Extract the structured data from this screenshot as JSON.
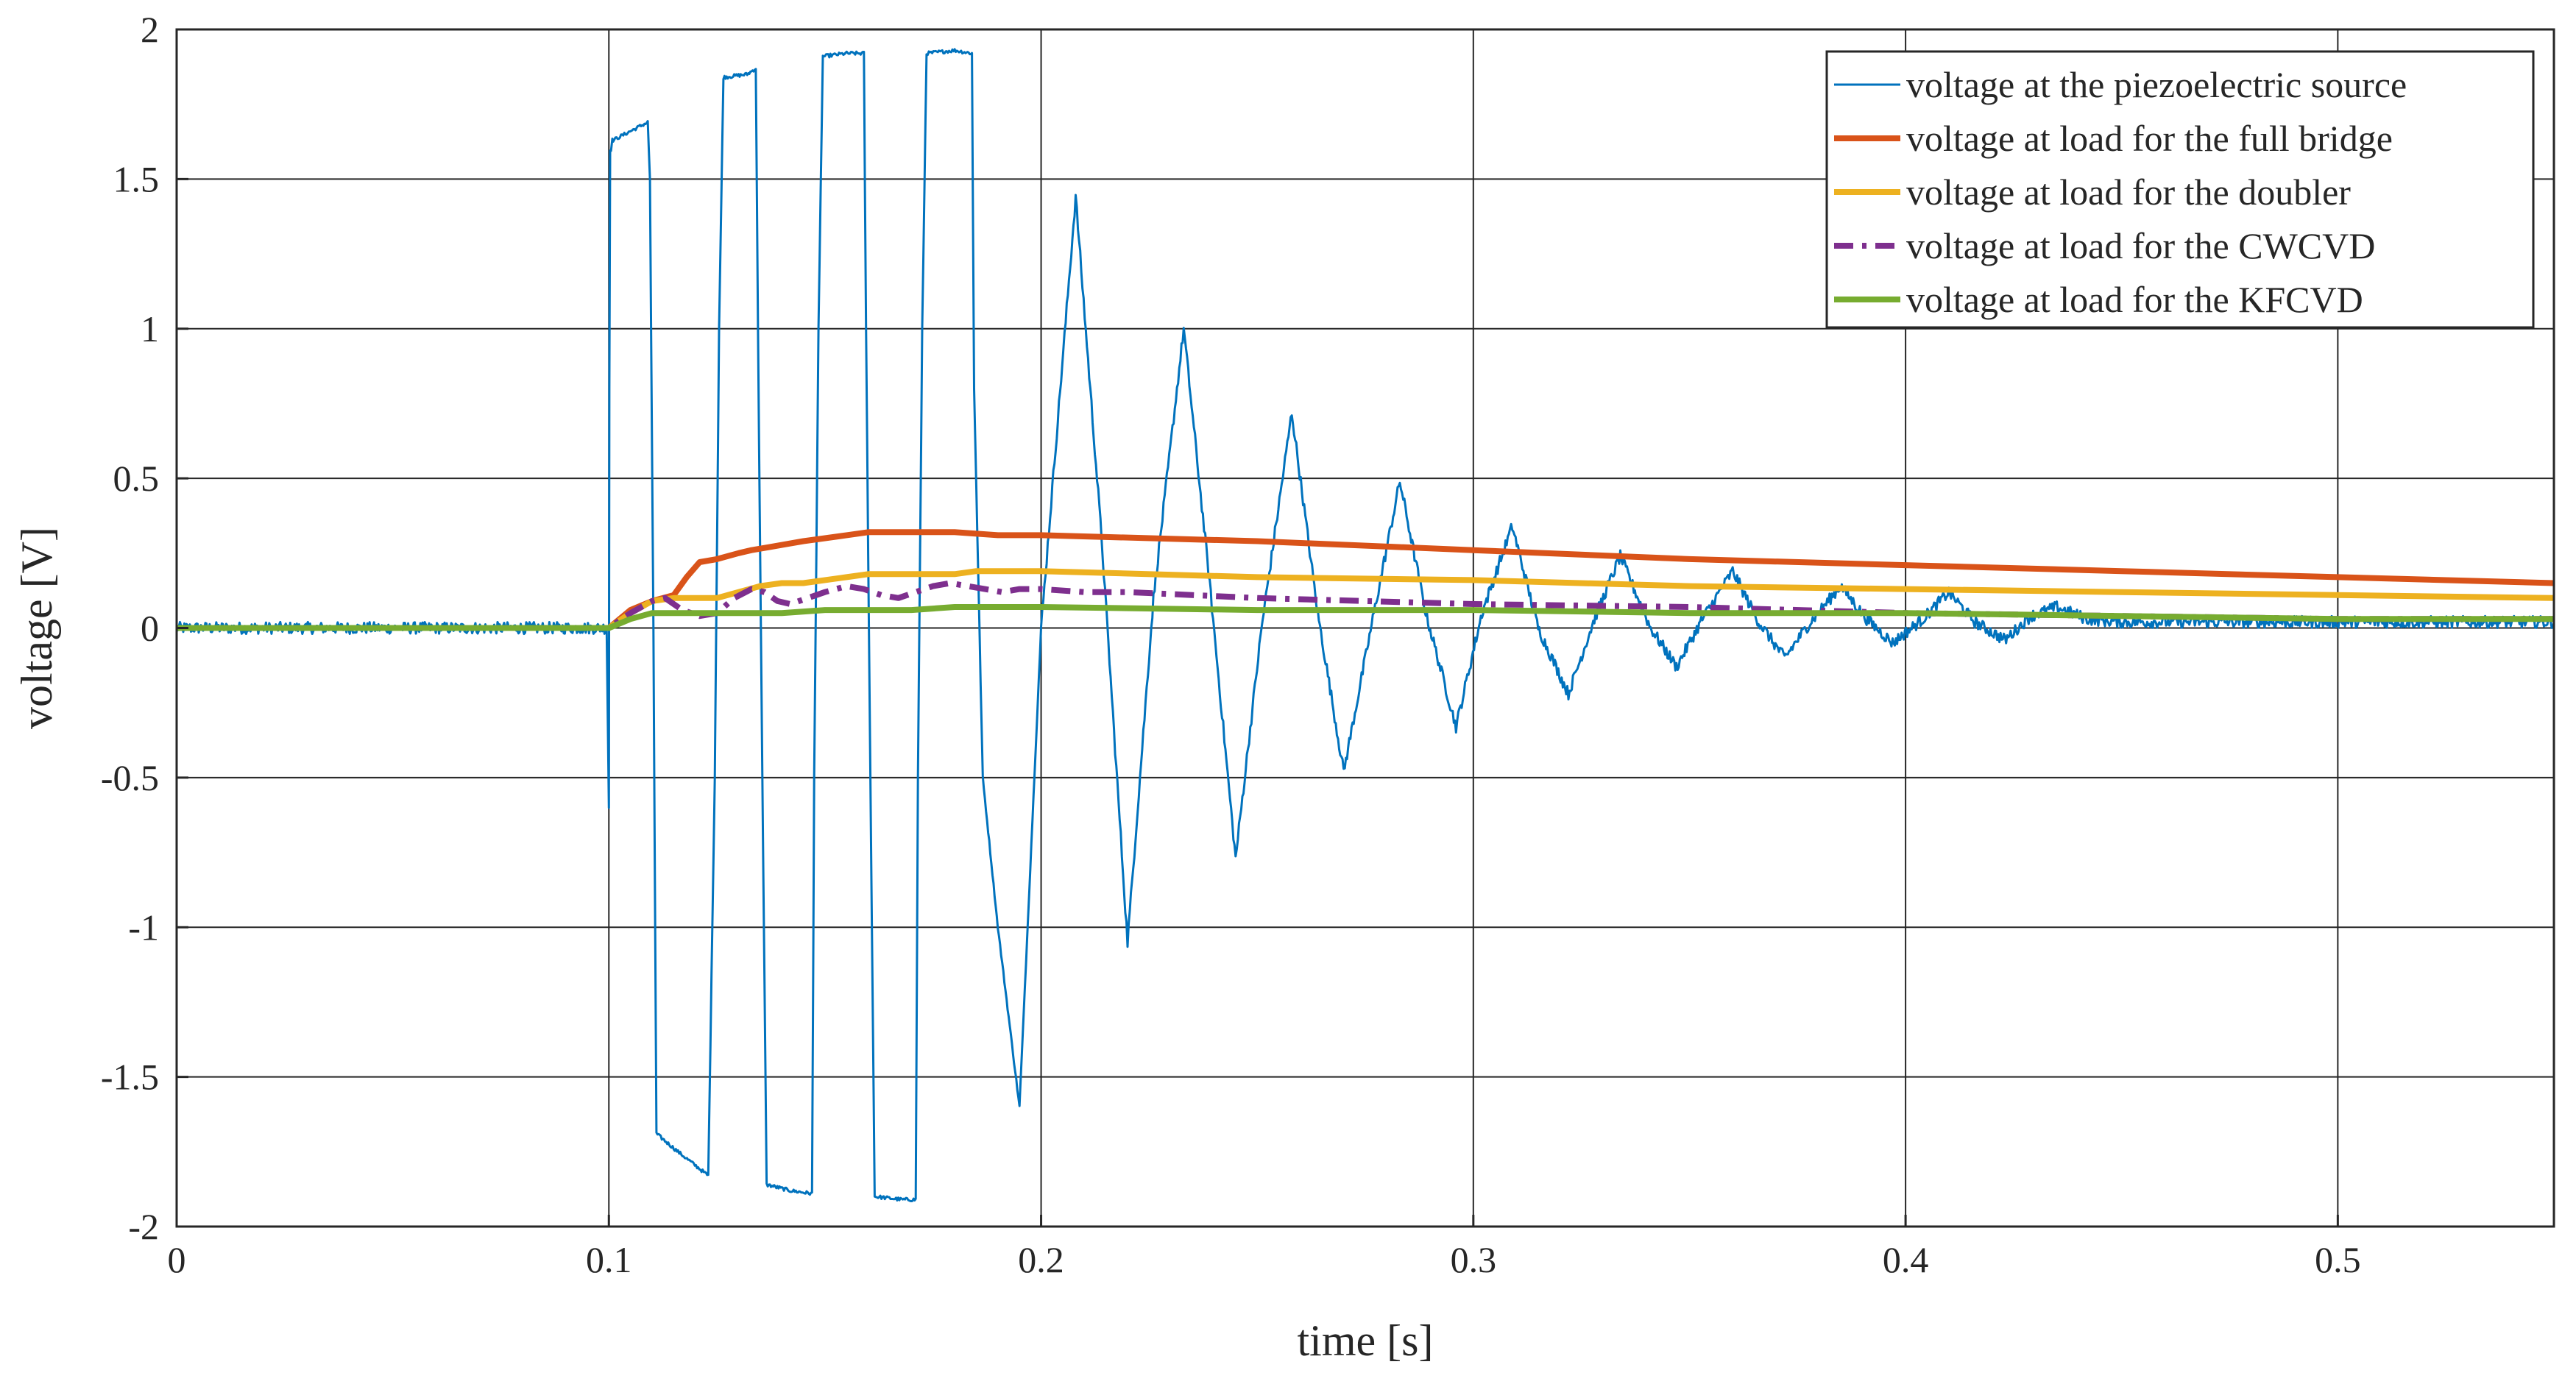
{
  "chart_data": {
    "type": "line",
    "title": "",
    "xlabel": "time [s]",
    "ylabel": "voltage [V]",
    "xlim": [
      0,
      0.55
    ],
    "ylim": [
      -2,
      2
    ],
    "grid": true,
    "legend_position": "top-right",
    "x_ticks": [
      0,
      0.1,
      0.2,
      0.3,
      0.4,
      0.5
    ],
    "x_tick_labels": [
      "0",
      "0.1",
      "0.2",
      "0.3",
      "0.4",
      "0.5"
    ],
    "y_ticks": [
      2,
      1.5,
      1,
      0.5,
      0,
      -0.5,
      -1,
      -1.5,
      -2
    ],
    "y_tick_labels": [
      "2",
      "1.5",
      "1",
      "0.5",
      "0",
      "-0.5",
      "-1",
      "-1.5",
      "-2"
    ],
    "series": [
      {
        "name": "voltage at the piezoelectric source",
        "color": "#0072BD",
        "style": "solid",
        "noise": 0.02,
        "x": [
          0,
          0.0995,
          0.1,
          0.1001,
          0.1003,
          0.1005,
          0.1008,
          0.101,
          0.109,
          0.1095,
          0.1103,
          0.111,
          0.116,
          0.123,
          0.1245,
          0.1255,
          0.1265,
          0.132,
          0.134,
          0.1345,
          0.1355,
          0.1365,
          0.142,
          0.147,
          0.1475,
          0.1485,
          0.1495,
          0.155,
          0.159,
          0.1595,
          0.1605,
          0.1615,
          0.168,
          0.171,
          0.1715,
          0.1725,
          0.1735,
          0.18,
          0.184,
          0.1845,
          0.1865,
          0.19,
          0.195,
          0.2,
          0.208,
          0.214,
          0.22,
          0.226,
          0.233,
          0.239,
          0.245,
          0.251,
          0.258,
          0.264,
          0.27,
          0.277,
          0.283,
          0.289,
          0.296,
          0.302,
          0.309,
          0.315,
          0.322,
          0.328,
          0.334,
          0.341,
          0.347,
          0.353,
          0.36,
          0.366,
          0.372,
          0.378,
          0.385,
          0.391,
          0.397,
          0.404,
          0.41,
          0.416,
          0.423,
          0.429,
          0.435,
          0.442,
          0.45,
          0.48,
          0.52,
          0.55
        ],
        "values": [
          0,
          0,
          -0.6,
          0.8,
          1.6,
          1.6,
          1.63,
          1.63,
          1.69,
          1.5,
          0.0,
          -1.69,
          -1.75,
          -1.83,
          -0.5,
          1.0,
          1.84,
          1.85,
          1.87,
          1.0,
          -0.5,
          -1.86,
          -1.88,
          -1.89,
          -0.5,
          1.0,
          1.91,
          1.92,
          1.92,
          1.0,
          -0.5,
          -1.9,
          -1.91,
          -1.91,
          -0.5,
          1.0,
          1.92,
          1.93,
          1.92,
          0.8,
          -0.5,
          -1.0,
          -1.6,
          0.0,
          1.44,
          0.3,
          -1.05,
          0.1,
          1.0,
          0.15,
          -0.77,
          0.0,
          0.72,
          0.05,
          -0.48,
          0.05,
          0.49,
          0.05,
          -0.33,
          0.05,
          0.34,
          0.0,
          -0.22,
          0.03,
          0.24,
          0.0,
          -0.13,
          0.03,
          0.19,
          0.02,
          -0.1,
          0.02,
          0.14,
          0.03,
          -0.05,
          0.03,
          0.12,
          0.02,
          -0.04,
          0.04,
          0.07,
          0.03,
          0.02,
          0.02,
          0.02,
          0.02
        ]
      },
      {
        "name": "voltage at load for the full bridge",
        "color": "#D95319",
        "style": "solid",
        "x": [
          0,
          0.1,
          0.105,
          0.11,
          0.115,
          0.118,
          0.121,
          0.125,
          0.13,
          0.133,
          0.137,
          0.141,
          0.145,
          0.15,
          0.155,
          0.16,
          0.17,
          0.18,
          0.19,
          0.2,
          0.25,
          0.3,
          0.35,
          0.4,
          0.45,
          0.5,
          0.55
        ],
        "values": [
          0,
          0,
          0.06,
          0.09,
          0.11,
          0.17,
          0.22,
          0.23,
          0.25,
          0.26,
          0.27,
          0.28,
          0.29,
          0.3,
          0.31,
          0.32,
          0.32,
          0.32,
          0.31,
          0.31,
          0.29,
          0.26,
          0.23,
          0.21,
          0.19,
          0.17,
          0.15
        ]
      },
      {
        "name": "voltage at load for the doubler",
        "color": "#EDB120",
        "style": "solid",
        "x": [
          0,
          0.1,
          0.105,
          0.11,
          0.115,
          0.12,
          0.125,
          0.13,
          0.135,
          0.14,
          0.145,
          0.15,
          0.155,
          0.16,
          0.165,
          0.17,
          0.18,
          0.185,
          0.19,
          0.2,
          0.25,
          0.3,
          0.35,
          0.4,
          0.45,
          0.5,
          0.55
        ],
        "values": [
          0,
          0,
          0.05,
          0.09,
          0.1,
          0.1,
          0.1,
          0.12,
          0.14,
          0.15,
          0.15,
          0.16,
          0.17,
          0.18,
          0.18,
          0.18,
          0.18,
          0.19,
          0.19,
          0.19,
          0.17,
          0.16,
          0.14,
          0.13,
          0.12,
          0.11,
          0.1
        ]
      },
      {
        "name": "voltage at load for the CWCVD",
        "color": "#7E2F8E",
        "style": "dashdot",
        "x": [
          0,
          0.1,
          0.105,
          0.11,
          0.113,
          0.117,
          0.121,
          0.125,
          0.129,
          0.133,
          0.136,
          0.139,
          0.142,
          0.146,
          0.15,
          0.155,
          0.159,
          0.163,
          0.167,
          0.171,
          0.175,
          0.179,
          0.183,
          0.187,
          0.191,
          0.195,
          0.2,
          0.21,
          0.22,
          0.25,
          0.3,
          0.35,
          0.4,
          0.45,
          0.5,
          0.55
        ],
        "values": [
          0,
          0,
          0.05,
          0.09,
          0.1,
          0.06,
          0.04,
          0.05,
          0.1,
          0.13,
          0.12,
          0.09,
          0.08,
          0.1,
          0.12,
          0.14,
          0.13,
          0.11,
          0.1,
          0.12,
          0.14,
          0.15,
          0.14,
          0.13,
          0.12,
          0.13,
          0.13,
          0.12,
          0.12,
          0.1,
          0.08,
          0.07,
          0.05,
          0.04,
          0.03,
          0.03
        ]
      },
      {
        "name": "voltage at load for the KFCVD",
        "color": "#77AC30",
        "style": "solid",
        "x": [
          0,
          0.1,
          0.105,
          0.11,
          0.12,
          0.13,
          0.14,
          0.15,
          0.16,
          0.17,
          0.18,
          0.2,
          0.25,
          0.3,
          0.35,
          0.4,
          0.45,
          0.5,
          0.55
        ],
        "values": [
          0,
          0,
          0.03,
          0.05,
          0.05,
          0.05,
          0.05,
          0.06,
          0.06,
          0.06,
          0.07,
          0.07,
          0.06,
          0.06,
          0.05,
          0.05,
          0.04,
          0.03,
          0.03
        ]
      }
    ]
  }
}
